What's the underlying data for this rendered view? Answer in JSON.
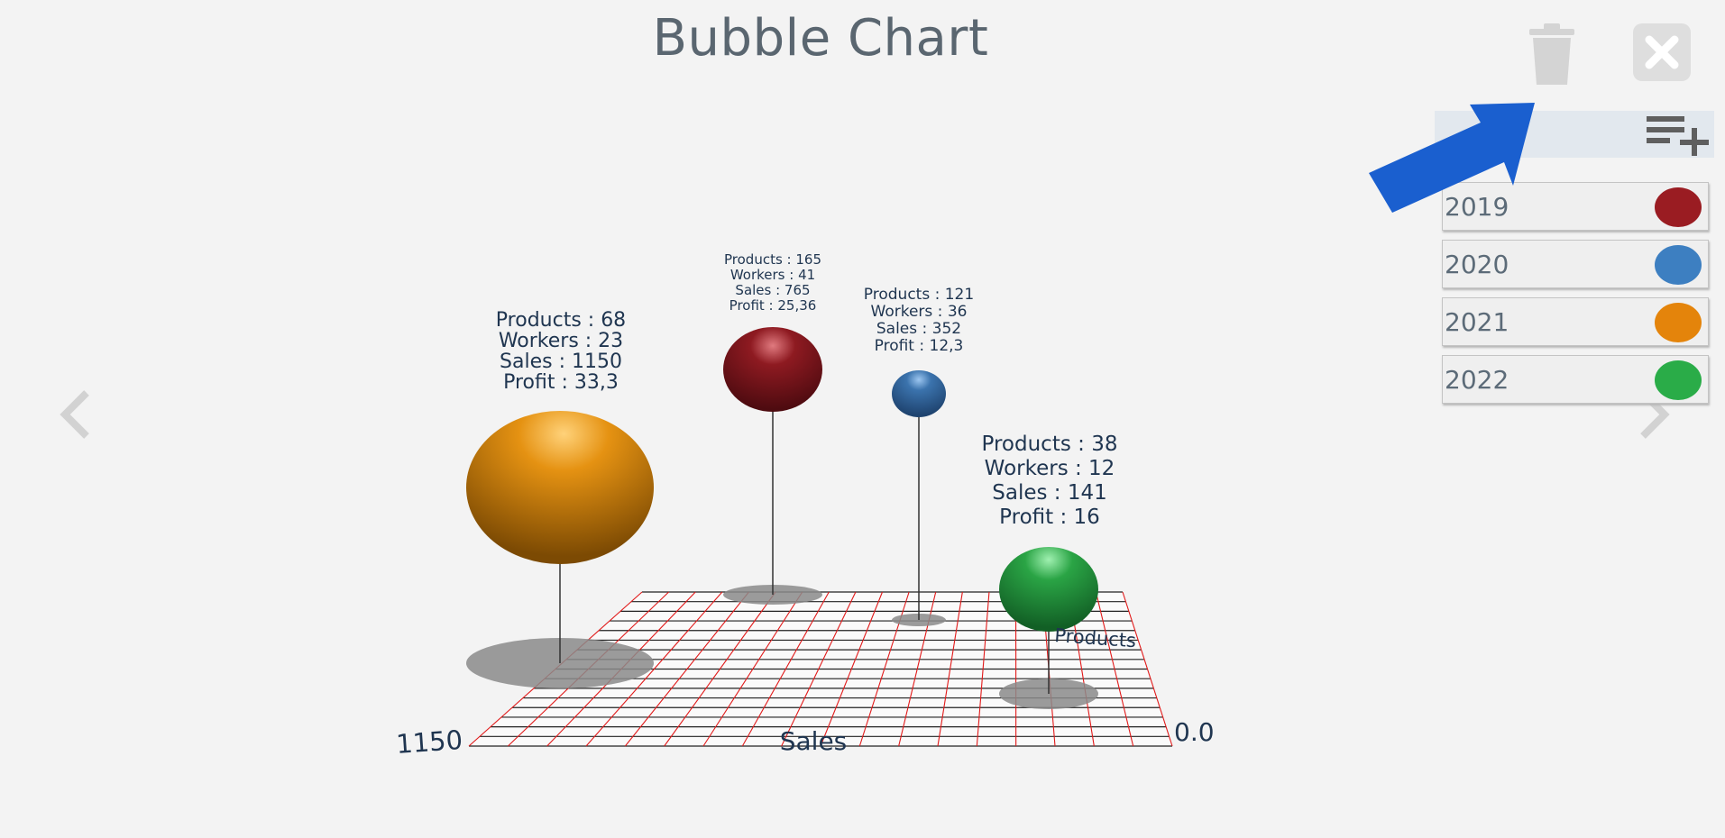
{
  "header": {
    "title": "Bubble Chart"
  },
  "toolbar": {
    "delete_icon": "trash-icon",
    "close_icon": "close-icon",
    "add_series_icon": "playlist-add-icon"
  },
  "navigation": {
    "prev_icon": "chevron-left-icon",
    "next_icon": "chevron-right-icon"
  },
  "legend": {
    "items": [
      {
        "label": "2019",
        "color": "#9a1c22"
      },
      {
        "label": "2020",
        "color": "#3d7fc1"
      },
      {
        "label": "2021",
        "color": "#e4840b"
      },
      {
        "label": "2022",
        "color": "#2aac48"
      }
    ]
  },
  "chart_data": {
    "type": "bubble-3d",
    "title": "Bubble Chart",
    "axes": {
      "x_label": "Sales",
      "z_label": "Products",
      "x_start_tick": "1150",
      "x_end_tick": "0.0"
    },
    "series": [
      {
        "name": "2019",
        "color": "#9a1c22",
        "products": 165,
        "workers": 41,
        "sales": 765,
        "profit": 25.36,
        "lines": [
          "Products : 165",
          "Workers : 41",
          "Sales : 765",
          "Profit : 25,36"
        ]
      },
      {
        "name": "2020",
        "color": "#3d7fc1",
        "products": 121,
        "workers": 36,
        "sales": 352,
        "profit": 12.3,
        "lines": [
          "Products : 121",
          "Workers : 36",
          "Sales : 352",
          "Profit : 12,3"
        ]
      },
      {
        "name": "2021",
        "color": "#e4840b",
        "products": 68,
        "workers": 23,
        "sales": 1150,
        "profit": 33.3,
        "lines": [
          "Products : 68",
          "Workers : 23",
          "Sales : 1150",
          "Profit : 33,3"
        ]
      },
      {
        "name": "2022",
        "color": "#2aac48",
        "products": 38,
        "workers": 12,
        "sales": 141,
        "profit": 16,
        "lines": [
          "Products : 38",
          "Workers : 12",
          "Sales : 141",
          "Profit : 16"
        ]
      }
    ]
  }
}
